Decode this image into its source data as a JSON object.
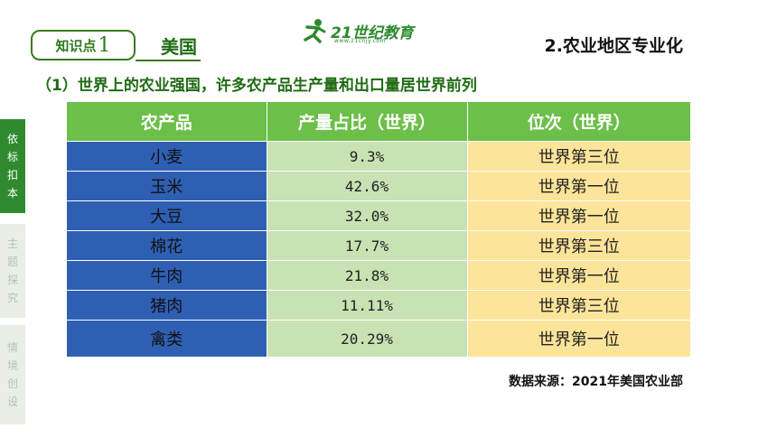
{
  "header": {
    "tag_text": "知识点",
    "tag_number": "1",
    "country": "美国",
    "logo_brand": "21世纪教育",
    "logo_sub": "www.21cnjy.com",
    "section_title": "2.农业地区专业化"
  },
  "subtitle": "（1）世界上的农业强国，许多农产品生产量和出口量居世界前列",
  "side_tabs": [
    {
      "label": "依标扣本",
      "chars": [
        "依",
        "标",
        "扣",
        "本"
      ]
    },
    {
      "label": "主题探究",
      "chars": [
        "主",
        "题",
        "探",
        "究"
      ]
    },
    {
      "label": "情境创设",
      "chars": [
        "情",
        "境",
        "创",
        "设"
      ]
    }
  ],
  "table": {
    "headers": [
      "农产品",
      "产量占比（世界）",
      "位次（世界）"
    ],
    "rows": [
      {
        "product": "小麦",
        "share": "9.3%",
        "rank": "世界第三位"
      },
      {
        "product": "玉米",
        "share": "42.6%",
        "rank": "世界第一位"
      },
      {
        "product": "大豆",
        "share": "32.0%",
        "rank": "世界第一位"
      },
      {
        "product": "棉花",
        "share": "17.7%",
        "rank": "世界第三位"
      },
      {
        "product": "牛肉",
        "share": "21.8%",
        "rank": "世界第一位"
      },
      {
        "product": "猪肉",
        "share": "11.11%",
        "rank": "世界第三位"
      },
      {
        "product": "禽类",
        "share": "20.29%",
        "rank": "世界第一位"
      }
    ]
  },
  "source": "数据来源：2021年美国农业部",
  "colors": {
    "header_green": "#6cbf48",
    "name_blue": "#2f5fb3",
    "share_green": "#c8e2b4",
    "rank_yellow": "#fce49a",
    "title_green": "#1f6b14"
  }
}
